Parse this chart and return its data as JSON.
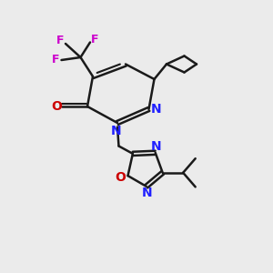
{
  "background_color": "#ebebeb",
  "bond_color": "#1a1a1a",
  "N_color": "#2020ff",
  "O_color": "#cc0000",
  "F_color": "#cc00cc",
  "figsize": [
    3.0,
    3.0
  ],
  "dpi": 100,
  "xlim": [
    0,
    10
  ],
  "ylim": [
    0,
    10
  ]
}
